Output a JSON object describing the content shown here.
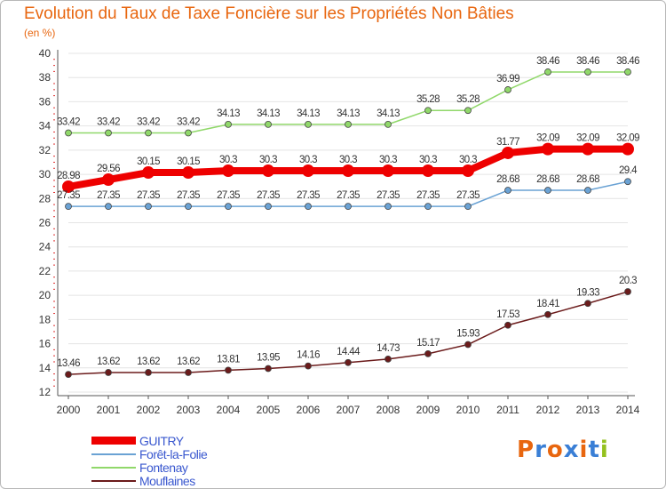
{
  "title": "Evolution du Taux de Taxe Foncière sur les Propriétés Non Bâties",
  "subtitle": "(en %)",
  "chart_data": {
    "type": "line",
    "title": "Evolution du Taux de Taxe Foncière sur les Propriétés Non Bâties",
    "ylabel": "(en %)",
    "xlabel": "",
    "x": [
      "2000",
      "2001",
      "2002",
      "2003",
      "2004",
      "2005",
      "2006",
      "2007",
      "2008",
      "2009",
      "2010",
      "2011",
      "2012",
      "2013",
      "2014"
    ],
    "ylim": [
      12,
      40
    ],
    "yticks": [
      12,
      14,
      16,
      18,
      20,
      22,
      24,
      26,
      28,
      30,
      32,
      34,
      36,
      38,
      40
    ],
    "series": [
      {
        "name": "Fontenay",
        "color": "#90d86a",
        "values": [
          33.42,
          33.42,
          33.42,
          33.42,
          34.13,
          34.13,
          34.13,
          34.13,
          34.13,
          35.28,
          35.28,
          36.99,
          38.46,
          38.46,
          38.46
        ],
        "labels": [
          "33.42",
          "33.42",
          "33.42",
          "33.42",
          "34.13",
          "34.13",
          "34.13",
          "34.13",
          "34.13",
          "35.28",
          "35.28",
          "36.99",
          "38.46",
          "38.46",
          "38.46"
        ]
      },
      {
        "name": "Forêt-la-Folie",
        "color": "#6aa2d4",
        "values": [
          27.35,
          27.35,
          27.35,
          27.35,
          27.35,
          27.35,
          27.35,
          27.35,
          27.35,
          27.35,
          27.35,
          28.68,
          28.68,
          28.68,
          29.4
        ],
        "labels": [
          "27.35",
          "27.35",
          "27.35",
          "27.35",
          "27.35",
          "27.35",
          "27.35",
          "27.35",
          "27.35",
          "27.35",
          "27.35",
          "28.68",
          "28.68",
          "28.68",
          "29.4"
        ]
      },
      {
        "name": "GUITRY",
        "color": "#ee0000",
        "values": [
          28.98,
          29.56,
          30.15,
          30.15,
          30.3,
          30.3,
          30.3,
          30.3,
          30.3,
          30.3,
          30.3,
          31.77,
          32.09,
          32.09,
          32.09
        ],
        "labels": [
          "28.98",
          "29.56",
          "30.15",
          "30.15",
          "30.3",
          "30.3",
          "30.3",
          "30.3",
          "30.3",
          "30.3",
          "30.3",
          "31.77",
          "32.09",
          "32.09",
          "32.09"
        ]
      },
      {
        "name": "Mouflaines",
        "color": "#6b1b1b",
        "values": [
          13.46,
          13.62,
          13.62,
          13.62,
          13.81,
          13.95,
          14.16,
          14.44,
          14.73,
          15.17,
          15.93,
          17.53,
          18.41,
          19.33,
          20.3
        ],
        "labels": [
          "13.46",
          "13.62",
          "13.62",
          "13.62",
          "13.81",
          "13.95",
          "14.16",
          "14.44",
          "14.73",
          "15.17",
          "15.93",
          "17.53",
          "18.41",
          "19.33",
          "20.3"
        ]
      }
    ]
  },
  "legend": [
    {
      "label": "GUITRY",
      "color": "#ee0000",
      "style": "thick"
    },
    {
      "label": "Forêt-la-Folie",
      "color": "#6aa2d4",
      "style": "thin"
    },
    {
      "label": "Fontenay",
      "color": "#90d86a",
      "style": "thin"
    },
    {
      "label": "Mouflaines",
      "color": "#6b1b1b",
      "style": "thin"
    }
  ],
  "logo": {
    "text": "Proxiti",
    "colors": [
      "#e8660f",
      "#3a7fd6",
      "#e8660f",
      "#3a7fd6",
      "#e8660f",
      "#3a7fd6",
      "#94c11f"
    ]
  }
}
